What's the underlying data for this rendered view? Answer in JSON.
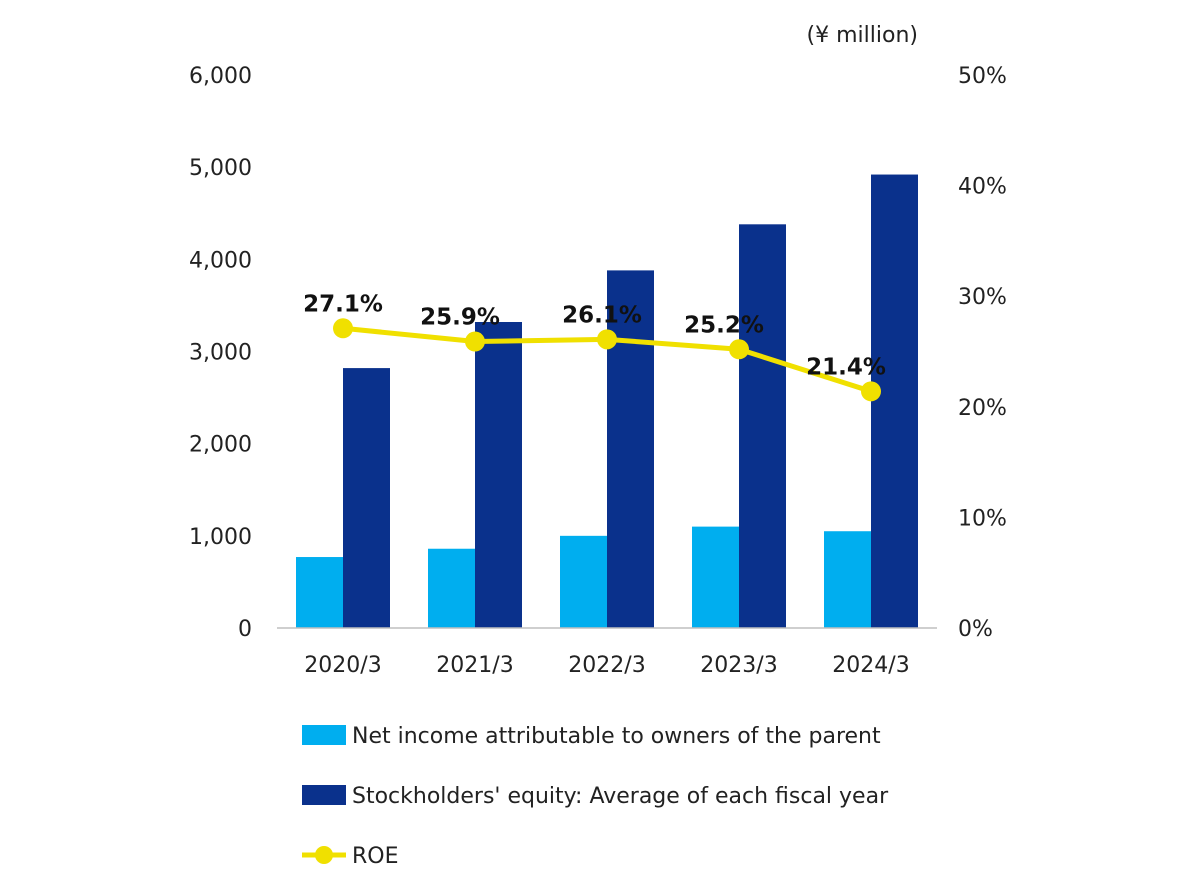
{
  "chart_data": {
    "type": "bar",
    "unit_label": "(¥ million)",
    "categories": [
      "2020/3",
      "2021/3",
      "2022/3",
      "2023/3",
      "2024/3"
    ],
    "series": [
      {
        "name": "Net income attributable to owners of the parent",
        "kind": "bar",
        "axis": "left",
        "color": "#00AEEF",
        "values": [
          770,
          860,
          1000,
          1100,
          1050
        ]
      },
      {
        "name": "Stockholders' equity: Average of each fiscal year",
        "kind": "bar",
        "axis": "left",
        "color": "#0A318C",
        "values": [
          2820,
          3320,
          3880,
          4380,
          4920
        ]
      },
      {
        "name": "ROE",
        "kind": "line",
        "axis": "right",
        "color": "#F0E000",
        "values": [
          27.1,
          25.9,
          26.1,
          25.2,
          21.4
        ],
        "labels": [
          "27.1%",
          "25.9%",
          "26.1%",
          "25.2%",
          "21.4%"
        ]
      }
    ],
    "y_left": {
      "min": 0,
      "max": 6000,
      "ticks": [
        0,
        1000,
        2000,
        3000,
        4000,
        5000,
        6000
      ],
      "tick_labels": [
        "0",
        "1,000",
        "2,000",
        "3,000",
        "4,000",
        "5,000",
        "6,000"
      ]
    },
    "y_right": {
      "min": 0,
      "max": 50,
      "ticks": [
        0,
        10,
        20,
        30,
        40,
        50
      ],
      "tick_labels": [
        "0%",
        "10%",
        "20%",
        "30%",
        "40%",
        "50%"
      ]
    },
    "grid": false,
    "legend_position": "bottom"
  }
}
